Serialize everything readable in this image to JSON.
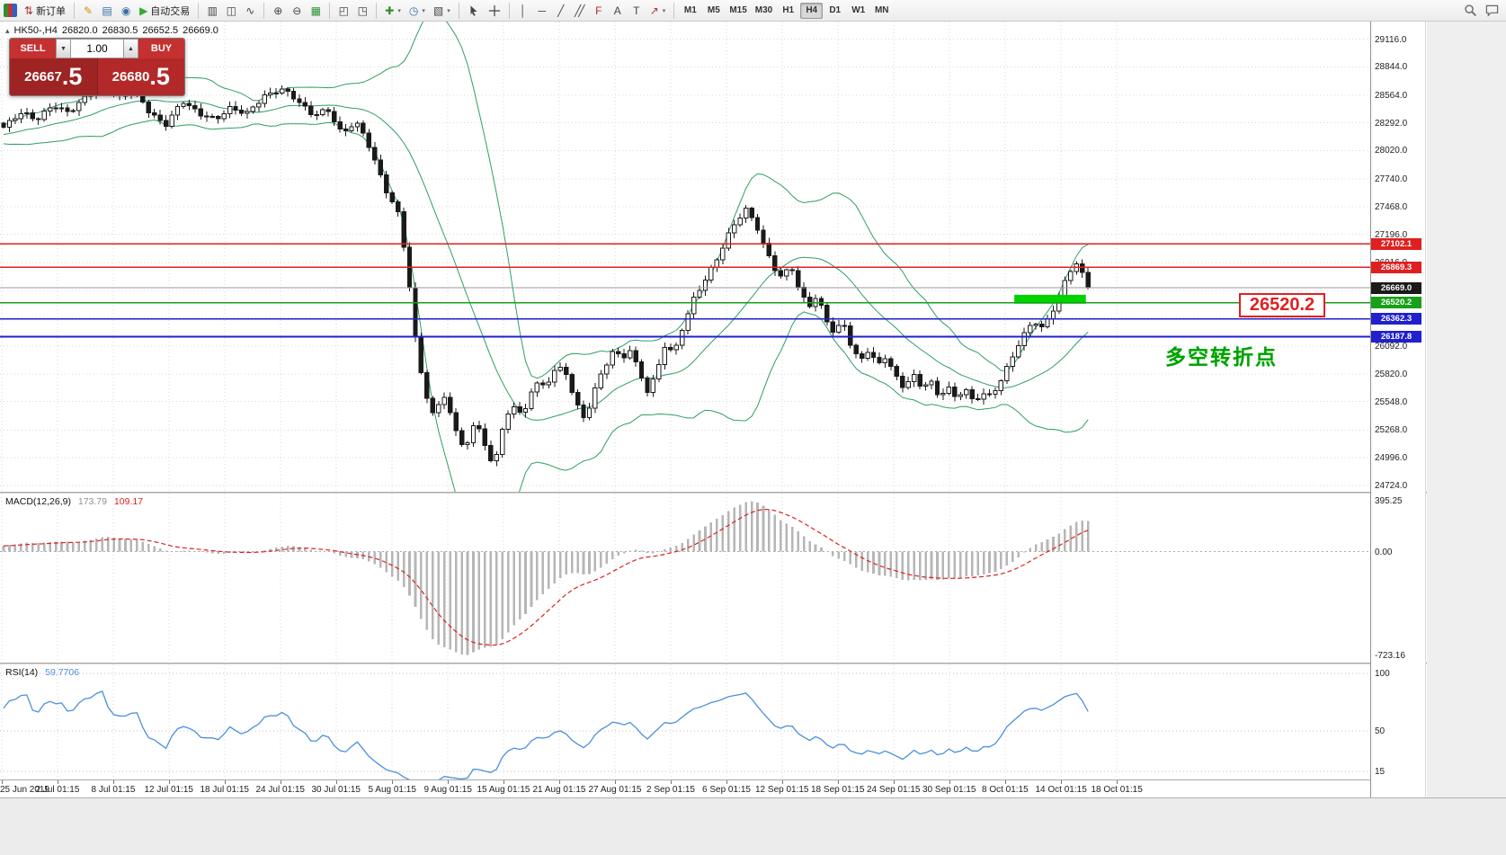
{
  "colors": {
    "up_candle": "#ffffff",
    "down_candle": "#1a1a1a",
    "candle_outline": "#1a1a1a",
    "bollinger": "#2f9e63",
    "macd_histogram": "#b6b6b6",
    "macd_signal": "#dd2020",
    "rsi_line": "#4a90d9",
    "grid": "#d8d8d8",
    "resistance_red": "#e02020",
    "support_blue": "#2020cc",
    "pivot_green": "#18a018",
    "current_price": "#999999",
    "highlight_green": "#00d200"
  },
  "toolbar": {
    "items": [
      {
        "kind": "appicon",
        "name": "app-icon"
      },
      {
        "kind": "labelbtn",
        "name": "new-order-button",
        "glyph": "⇅",
        "glyph_color": "#b03030",
        "label": "新订单"
      },
      {
        "kind": "sep"
      },
      {
        "kind": "iconbtn",
        "name": "metaeditor-icon-button",
        "glyph": "✎",
        "color": "#d78e00"
      },
      {
        "kind": "iconbtn",
        "name": "depth-of-market-icon-button",
        "glyph": "▤",
        "color": "#3a6ea5"
      },
      {
        "kind": "iconbtn",
        "name": "community-icon-button",
        "glyph": "◉",
        "color": "#3a6ea5"
      },
      {
        "kind": "labelbtn",
        "name": "autotrading-button",
        "glyph": "▶",
        "glyph_color": "#2faa2f",
        "label": "自动交易"
      },
      {
        "kind": "sep"
      },
      {
        "kind": "iconbtn",
        "name": "bar-chart-icon-button",
        "glyph": "▥",
        "color": "#444444"
      },
      {
        "kind": "iconbtn",
        "name": "candlestick-chart-icon-button",
        "glyph": "◫",
        "color": "#444444"
      },
      {
        "kind": "iconbtn",
        "name": "line-chart-icon-button",
        "glyph": "∿",
        "color": "#444444"
      },
      {
        "kind": "sep"
      },
      {
        "kind": "iconbtn",
        "name": "zoom-in-icon-button",
        "glyph": "⊕",
        "color": "#444444"
      },
      {
        "kind": "iconbtn",
        "name": "zoom-out-icon-button",
        "glyph": "⊖",
        "color": "#444444"
      },
      {
        "kind": "iconbtn",
        "name": "strategy-tester-grid-icon-button",
        "glyph": "▦",
        "color": "#2f8f2f"
      },
      {
        "kind": "sep"
      },
      {
        "kind": "iconbtn",
        "name": "tile-windows-icon-button",
        "glyph": "◰",
        "color": "#444444"
      },
      {
        "kind": "iconbtn",
        "name": "cascade-windows-icon-button",
        "glyph": "◳",
        "color": "#444444"
      },
      {
        "kind": "sep"
      },
      {
        "kind": "iconbtn",
        "name": "indicators-icon-button",
        "glyph": "✚",
        "color": "#2f8f2f",
        "caret": true
      },
      {
        "kind": "iconbtn",
        "name": "periods-icon-button",
        "glyph": "◷",
        "color": "#3a6ea5",
        "caret": true
      },
      {
        "kind": "iconbtn",
        "name": "chart-properties-icon-button",
        "glyph": "▧",
        "color": "#444444",
        "caret": true
      },
      {
        "kind": "sep"
      },
      {
        "kind": "svgbtn",
        "name": "cursor-icon-button"
      },
      {
        "kind": "svgbtn",
        "name": "crosshair-icon-button"
      },
      {
        "kind": "sep"
      },
      {
        "kind": "iconbtn",
        "name": "vertical-line-icon-button",
        "glyph": "│",
        "color": "#444444"
      },
      {
        "kind": "iconbtn",
        "name": "horizontal-line-icon-button",
        "glyph": "─",
        "color": "#444444"
      },
      {
        "kind": "iconbtn",
        "name": "trendline-icon-button",
        "glyph": "╱",
        "color": "#444444"
      },
      {
        "kind": "iconbtn",
        "name": "equidistant-channel-icon-button",
        "glyph": "╱╱",
        "color": "#444444",
        "tight": true
      },
      {
        "kind": "iconbtn",
        "name": "fibonacci-icon-button",
        "glyph": "F",
        "color": "#b03030"
      },
      {
        "kind": "iconbtn",
        "name": "text-icon-button",
        "glyph": "A",
        "color": "#444444"
      },
      {
        "kind": "iconbtn",
        "name": "text-label-icon-button",
        "glyph": "T",
        "color": "#444444"
      },
      {
        "kind": "iconbtn",
        "name": "shapes-icon-button",
        "glyph": "↗",
        "color": "#b03030",
        "caret": true
      },
      {
        "kind": "sep"
      },
      {
        "kind": "tf",
        "label": "M1"
      },
      {
        "kind": "tf",
        "label": "M5"
      },
      {
        "kind": "tf",
        "label": "M15"
      },
      {
        "kind": "tf",
        "label": "M30"
      },
      {
        "kind": "tf",
        "label": "H1"
      },
      {
        "kind": "tf",
        "label": "H4",
        "active": true
      },
      {
        "kind": "tf",
        "label": "D1"
      },
      {
        "kind": "tf",
        "label": "W1"
      },
      {
        "kind": "tf",
        "label": "MN"
      },
      {
        "kind": "spacer"
      },
      {
        "kind": "svgbtn",
        "name": "search-icon-button"
      },
      {
        "kind": "svgbtn",
        "name": "chat-icon-button"
      }
    ]
  },
  "chart": {
    "header": {
      "symbol": "HK50-,H4",
      "open": "26820.0",
      "high": "26830.5",
      "low": "26652.5",
      "close": "26669.0",
      "collapse_glyph": "▴"
    },
    "trade_panel": {
      "sell_label": "SELL",
      "buy_label": "BUY",
      "volume": "1.00",
      "spin_down": "▼",
      "spin_up": "▲",
      "sell_price": "26667",
      "sell_fraction": ".5",
      "buy_price": "26680",
      "buy_fraction": ".5"
    },
    "overlays": {
      "big_label": "26520.2",
      "annotation": "多空转折点"
    }
  },
  "macd": {
    "name": "MACD(12,26,9)",
    "main_value": "173.79",
    "signal_value": "109.17",
    "scale_top": "395.25",
    "scale_zero": "0.00",
    "scale_bottom": "-723.16"
  },
  "rsi": {
    "name": "RSI(14)",
    "value": "59.7706",
    "scale": [
      "100",
      "50",
      "15"
    ]
  },
  "chart_data": {
    "type": "candlestick",
    "symbol": "HK50",
    "timeframe": "H4",
    "ohlc_current": {
      "open": 26820.0,
      "high": 26830.5,
      "low": 26652.5,
      "close": 26669.0
    },
    "y_axis_ticks": [
      29116.0,
      28844.0,
      28564.0,
      28292.0,
      28020.0,
      27740.0,
      27468.0,
      27196.0,
      26916.0,
      26644.0,
      26372.0,
      26092.0,
      25820.0,
      25548.0,
      25268.0,
      24996.0,
      24724.0
    ],
    "y_range_approx": [
      24660,
      29290
    ],
    "x_labels": [
      "25 Jun 2019",
      "2 Jul 01:15",
      "8 Jul 01:15",
      "12 Jul 01:15",
      "18 Jul 01:15",
      "24 Jul 01:15",
      "30 Jul 01:15",
      "5 Aug 01:15",
      "9 Aug 01:15",
      "15 Aug 01:15",
      "21 Aug 01:15",
      "27 Aug 01:15",
      "2 Sep 01:15",
      "6 Sep 01:15",
      "12 Sep 01:15",
      "18 Sep 01:15",
      "24 Sep 01:15",
      "30 Sep 01:15",
      "8 Oct 01:15",
      "14 Oct 01:15",
      "18 Oct 01:15"
    ],
    "levels": [
      {
        "label": "27102.1",
        "price": 27102.1,
        "line": "#e02020",
        "badge": "#e02020",
        "width": 1.4
      },
      {
        "label": "26869.3",
        "price": 26869.3,
        "line": "#e02020",
        "badge": "#e02020",
        "width": 1.4
      },
      {
        "label": "26669.0",
        "price": 26669.0,
        "line": "#999999",
        "badge": "#1a1a1a",
        "width": 1
      },
      {
        "label": "26520.2",
        "price": 26520.2,
        "line": "#18a018",
        "badge": "#18a018",
        "width": 1.6
      },
      {
        "label": "26362.3",
        "price": 26362.3,
        "line": "#2020cc",
        "badge": "#2020cc",
        "width": 1.8
      },
      {
        "label": "26187.8",
        "price": 26187.8,
        "line": "#2020cc",
        "badge": "#2020cc",
        "width": 1.8
      }
    ],
    "highlight_rect": {
      "t_start": 0.932,
      "t_end": 0.998,
      "price_top": 26600,
      "price_bottom": 26512
    },
    "indicators": {
      "bollinger": {
        "period": 20,
        "deviation": 2
      },
      "macd": {
        "fast": 12,
        "slow": 26,
        "signal": 9
      },
      "rsi": {
        "period": 14
      }
    },
    "price_waypoints": [
      [
        0.0,
        28250
      ],
      [
        0.015,
        28380
      ],
      [
        0.03,
        28300
      ],
      [
        0.045,
        28480
      ],
      [
        0.06,
        28400
      ],
      [
        0.075,
        28560
      ],
      [
        0.09,
        28690
      ],
      [
        0.105,
        28520
      ],
      [
        0.12,
        28620
      ],
      [
        0.135,
        28400
      ],
      [
        0.15,
        28300
      ],
      [
        0.165,
        28500
      ],
      [
        0.18,
        28380
      ],
      [
        0.195,
        28300
      ],
      [
        0.21,
        28460
      ],
      [
        0.225,
        28400
      ],
      [
        0.24,
        28560
      ],
      [
        0.255,
        28620
      ],
      [
        0.27,
        28500
      ],
      [
        0.285,
        28380
      ],
      [
        0.3,
        28420
      ],
      [
        0.312,
        28200
      ],
      [
        0.324,
        28320
      ],
      [
        0.336,
        28080
      ],
      [
        0.346,
        27800
      ],
      [
        0.355,
        27560
      ],
      [
        0.363,
        27420
      ],
      [
        0.372,
        26900
      ],
      [
        0.38,
        26150
      ],
      [
        0.388,
        25700
      ],
      [
        0.396,
        25420
      ],
      [
        0.406,
        25620
      ],
      [
        0.416,
        25280
      ],
      [
        0.426,
        25060
      ],
      [
        0.436,
        25360
      ],
      [
        0.444,
        25100
      ],
      [
        0.451,
        24900
      ],
      [
        0.46,
        25300
      ],
      [
        0.47,
        25520
      ],
      [
        0.48,
        25430
      ],
      [
        0.49,
        25780
      ],
      [
        0.5,
        25650
      ],
      [
        0.51,
        25900
      ],
      [
        0.52,
        25780
      ],
      [
        0.528,
        25540
      ],
      [
        0.536,
        25340
      ],
      [
        0.544,
        25660
      ],
      [
        0.554,
        25900
      ],
      [
        0.562,
        26080
      ],
      [
        0.57,
        25950
      ],
      [
        0.578,
        26060
      ],
      [
        0.586,
        25820
      ],
      [
        0.594,
        25640
      ],
      [
        0.602,
        25800
      ],
      [
        0.61,
        26100
      ],
      [
        0.618,
        26020
      ],
      [
        0.626,
        26300
      ],
      [
        0.636,
        26560
      ],
      [
        0.646,
        26740
      ],
      [
        0.656,
        26920
      ],
      [
        0.666,
        27130
      ],
      [
        0.676,
        27300
      ],
      [
        0.684,
        27430
      ],
      [
        0.694,
        27300
      ],
      [
        0.702,
        27060
      ],
      [
        0.71,
        26880
      ],
      [
        0.718,
        26780
      ],
      [
        0.726,
        26920
      ],
      [
        0.734,
        26640
      ],
      [
        0.742,
        26460
      ],
      [
        0.75,
        26580
      ],
      [
        0.758,
        26350
      ],
      [
        0.766,
        26220
      ],
      [
        0.774,
        26320
      ],
      [
        0.782,
        26080
      ],
      [
        0.79,
        25960
      ],
      [
        0.798,
        26100
      ],
      [
        0.806,
        25900
      ],
      [
        0.814,
        26000
      ],
      [
        0.822,
        25800
      ],
      [
        0.83,
        25680
      ],
      [
        0.838,
        25800
      ],
      [
        0.846,
        25660
      ],
      [
        0.854,
        25760
      ],
      [
        0.862,
        25600
      ],
      [
        0.87,
        25720
      ],
      [
        0.878,
        25580
      ],
      [
        0.886,
        25700
      ],
      [
        0.894,
        25560
      ],
      [
        0.902,
        25640
      ],
      [
        0.91,
        25580
      ],
      [
        0.918,
        25700
      ],
      [
        0.926,
        25880
      ],
      [
        0.934,
        26080
      ],
      [
        0.942,
        26220
      ],
      [
        0.95,
        26350
      ],
      [
        0.958,
        26280
      ],
      [
        0.966,
        26450
      ],
      [
        0.974,
        26600
      ],
      [
        0.982,
        26820
      ],
      [
        0.99,
        26900
      ],
      [
        1.0,
        26669
      ]
    ]
  }
}
